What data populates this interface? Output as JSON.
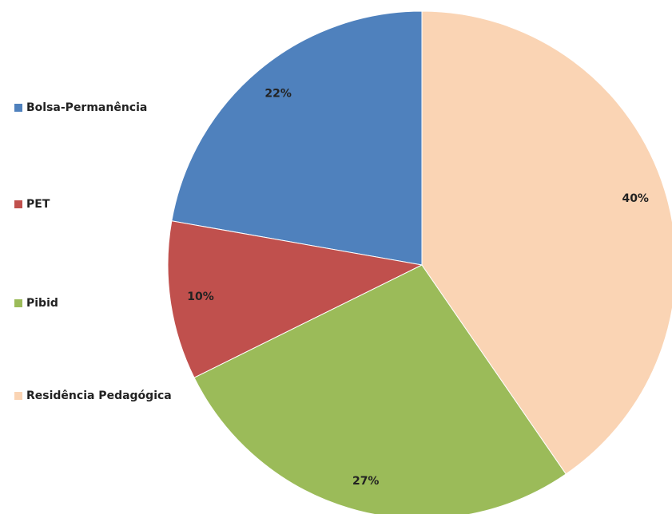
{
  "chart_data": {
    "type": "pie",
    "categories": [
      "Bolsa-Permanência",
      "PET",
      "Pibid",
      "Residência Pedagógica"
    ],
    "values": [
      22,
      10,
      27,
      40
    ],
    "value_labels": [
      "22%",
      "10%",
      "27%",
      "40%"
    ],
    "colors": [
      "#4f81bd",
      "#c0504d",
      "#9bbb59",
      "#fad4b4"
    ],
    "legend": "left"
  }
}
